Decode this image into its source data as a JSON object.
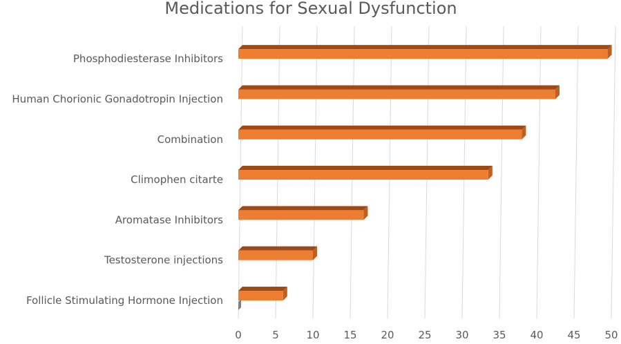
{
  "chart_data": {
    "type": "bar",
    "orientation": "horizontal",
    "title": "Medications for Sexual Dysfunction",
    "categories": [
      "Phosphodiesterase Inhibitors",
      "Human Chorionic Gonadotropin Injection",
      "Combination",
      "Climophen citarte",
      "Aromatase Inhibitors",
      "Testosterone injections",
      "Follicle Stimulating Hormone Injection"
    ],
    "values": [
      49.5,
      42.5,
      38,
      33.5,
      16.8,
      10,
      6
    ],
    "xlim": [
      0,
      50
    ],
    "xticks": [
      "0",
      "5",
      "10",
      "15",
      "20",
      "25",
      "30",
      "35",
      "40",
      "45",
      "50"
    ],
    "grid": true,
    "legend": "none",
    "style": "3d",
    "colors": {
      "bar_front": "#ED7D31",
      "bar_top": "#9E4A17",
      "bar_side": "#C05F1F",
      "grid": "#D9D9D9",
      "text": "#595959"
    }
  }
}
